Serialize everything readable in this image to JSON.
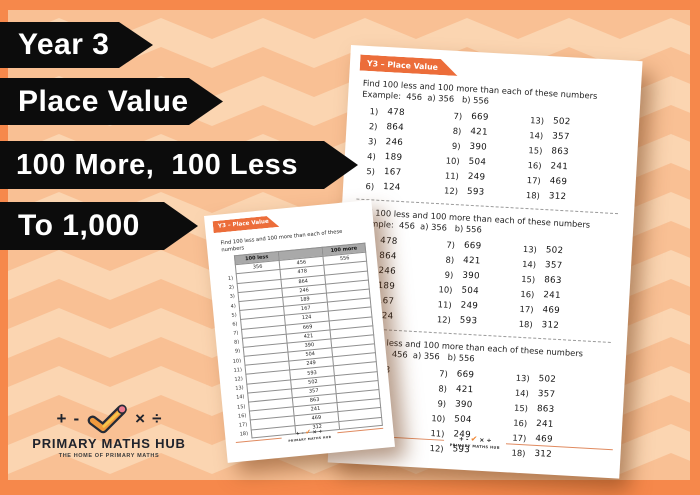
{
  "banners": {
    "year": "Year 3",
    "topic": "Place Value",
    "skill": "100 More,  100 Less",
    "range": "To 1,000"
  },
  "brand_logo": {
    "plus": "+",
    "minus": "-",
    "times": "×",
    "divide": "÷",
    "title": "PRIMARY MATHS HUB",
    "tagline": "THE HOME OF PRIMARY MATHS"
  },
  "sheet_main": {
    "header_label": "Y3 – Place Value",
    "instruction": "Find 100 less and 100 more than each of these numbers",
    "example": "Example:  456  a) 356   b) 556",
    "section_count": 3,
    "items": [
      {
        "label": "1)",
        "value": "478"
      },
      {
        "label": "2)",
        "value": "864"
      },
      {
        "label": "3)",
        "value": "246"
      },
      {
        "label": "4)",
        "value": "189"
      },
      {
        "label": "5)",
        "value": "167"
      },
      {
        "label": "6)",
        "value": "124"
      },
      {
        "label": "7)",
        "value": "669"
      },
      {
        "label": "8)",
        "value": "421"
      },
      {
        "label": "9)",
        "value": "390"
      },
      {
        "label": "10)",
        "value": "504"
      },
      {
        "label": "11)",
        "value": "249"
      },
      {
        "label": "12)",
        "value": "593"
      },
      {
        "label": "13)",
        "value": "502"
      },
      {
        "label": "14)",
        "value": "357"
      },
      {
        "label": "15)",
        "value": "863"
      },
      {
        "label": "16)",
        "value": "241"
      },
      {
        "label": "17)",
        "value": "469"
      },
      {
        "label": "18)",
        "value": "312"
      }
    ],
    "footer": {
      "symbols_left": "+ -",
      "check": "✔",
      "symbols_right": "× ÷",
      "brand": "PRIMARY MATHS HUB"
    }
  },
  "sheet_table": {
    "header_label": "Y3 – Place Value",
    "instruction": "Find 100 less and 100 more than each of these numbers",
    "columns": [
      "100 less",
      "",
      "100 more"
    ],
    "example_row": {
      "less": "356",
      "number": "456",
      "more": "556"
    },
    "rows": [
      {
        "label": "1)",
        "number": "478"
      },
      {
        "label": "2)",
        "number": "864"
      },
      {
        "label": "3)",
        "number": "246"
      },
      {
        "label": "4)",
        "number": "189"
      },
      {
        "label": "5)",
        "number": "167"
      },
      {
        "label": "6)",
        "number": "124"
      },
      {
        "label": "7)",
        "number": "669"
      },
      {
        "label": "8)",
        "number": "421"
      },
      {
        "label": "9)",
        "number": "390"
      },
      {
        "label": "10)",
        "number": "504"
      },
      {
        "label": "11)",
        "number": "249"
      },
      {
        "label": "12)",
        "number": "593"
      },
      {
        "label": "13)",
        "number": "502"
      },
      {
        "label": "14)",
        "number": "357"
      },
      {
        "label": "15)",
        "number": "863"
      },
      {
        "label": "16)",
        "number": "241"
      },
      {
        "label": "17)",
        "number": "469"
      },
      {
        "label": "18)",
        "number": "312"
      }
    ],
    "footer": {
      "symbols_left": "+ -",
      "check": "✔",
      "symbols_right": "× ÷",
      "brand": "PRIMARY MATHS HUB"
    }
  }
}
